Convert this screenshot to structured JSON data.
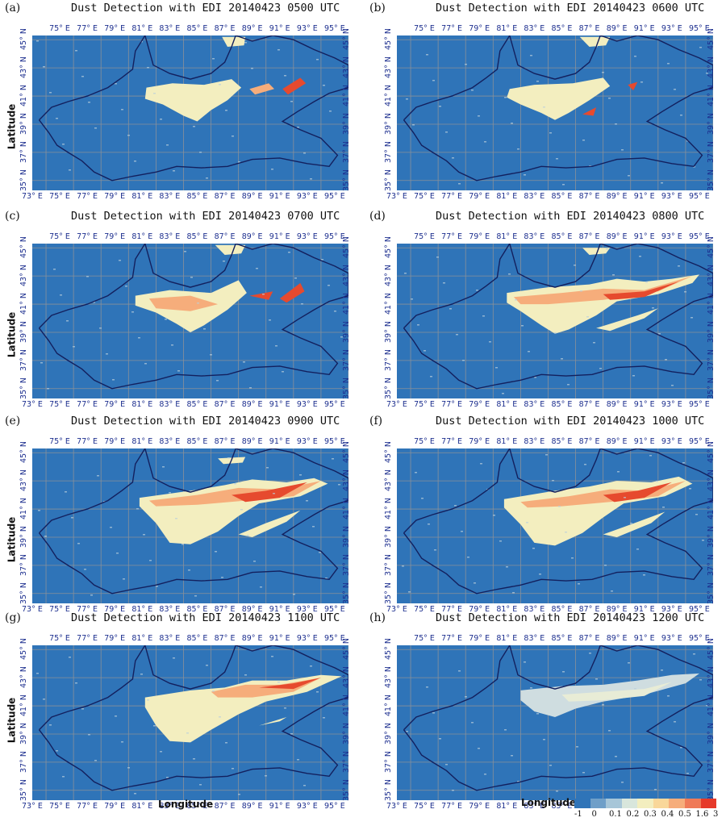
{
  "panels": [
    {
      "label": "(a)",
      "title": "Dust Detection with  EDI  20140423  0500  UTC",
      "show_xlabels_bottom": true
    },
    {
      "label": "(b)",
      "title": "Dust Detection with  EDI  20140423  0600  UTC",
      "show_xlabels_bottom": true
    },
    {
      "label": "(c)",
      "title": "Dust Detection with  EDI  20140423  0700  UTC",
      "show_xlabels_bottom": true
    },
    {
      "label": "(d)",
      "title": "Dust Detection with  EDI  20140423  0800  UTC",
      "show_xlabels_bottom": true
    },
    {
      "label": "(e)",
      "title": "Dust Detection with  EDI  20140423  0900  UTC",
      "show_xlabels_bottom": true
    },
    {
      "label": "(f)",
      "title": "Dust Detection with  EDI  20140423  1000  UTC",
      "show_xlabels_bottom": true
    },
    {
      "label": "(g)",
      "title": "Dust Detection with  EDI  20140423  1100  UTC",
      "show_xlabels_bottom": true
    },
    {
      "label": "(h)",
      "title": "Dust Detection with  EDI  20140423  1200  UTC",
      "show_xlabels_bottom": true
    }
  ],
  "lon_ticks": [
    "73° E",
    "75° E",
    "77° E",
    "79° E",
    "81° E",
    "83° E",
    "85° E",
    "87° E",
    "89° E",
    "91° E",
    "93° E",
    "95° E"
  ],
  "lon_ticks_top": [
    "75° E",
    "77° E",
    "79° E",
    "81° E",
    "83° E",
    "85° E",
    "87° E",
    "89° E",
    "91° E",
    "93° E",
    "95° E"
  ],
  "lat_ticks": [
    "45° N",
    "43° N",
    "41° N",
    "39° N",
    "37° N",
    "35° N"
  ],
  "axis": {
    "ylabel": "Latitude",
    "xlabel": "Longitude",
    "legend_title": "Longitude"
  },
  "legend": {
    "labels": [
      "-1",
      "0",
      "0.1",
      "0.2",
      "0.3",
      "0.4",
      "0.5",
      "1.6",
      "3"
    ],
    "colors": [
      "#2f74b8",
      "#6f9fc8",
      "#a7c6d8",
      "#d8e6dc",
      "#f3eebf",
      "#f9d79a",
      "#f6ad7b",
      "#ef7a58",
      "#e63a2a"
    ]
  },
  "colors": {
    "background": "#2f74b8",
    "grid": "#8a9099",
    "border": "#13205e",
    "dust_low": "#f3eebf",
    "dust_mid": "#f6ad7b",
    "dust_high": "#e64a2e"
  }
}
